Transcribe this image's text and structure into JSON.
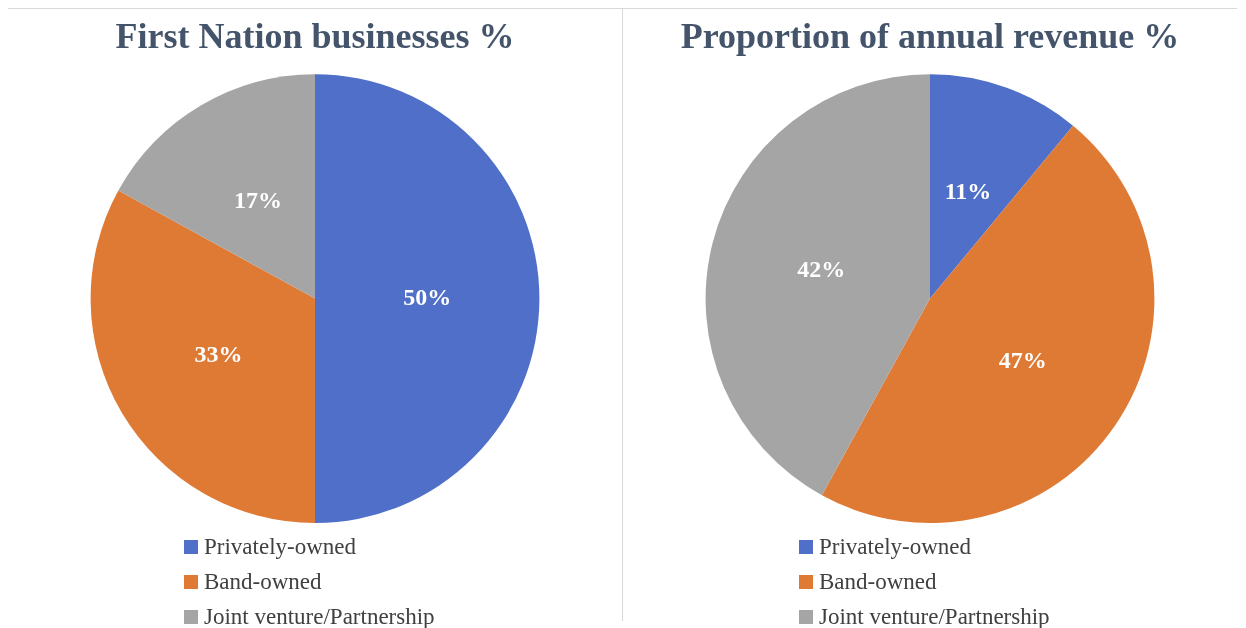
{
  "chart_data": [
    {
      "type": "pie",
      "title": "First Nation businesses %",
      "categories": [
        "Privately-owned",
        "Band-owned",
        "Joint venture/Partnership"
      ],
      "values": [
        50,
        33,
        17
      ],
      "value_labels": [
        "50%",
        "33%",
        "17%"
      ],
      "colors": [
        "#4f6fc8",
        "#df7a35",
        "#a5a5a5"
      ],
      "legend": "bottom"
    },
    {
      "type": "pie",
      "title": "Proportion of annual revenue %",
      "categories": [
        "Privately-owned",
        "Band-owned",
        "Joint venture/Partnership"
      ],
      "values": [
        11,
        47,
        42
      ],
      "value_labels": [
        "11%",
        "47%",
        "42%"
      ],
      "colors": [
        "#4f6fc8",
        "#df7a35",
        "#a5a5a5"
      ],
      "legend": "bottom"
    }
  ]
}
